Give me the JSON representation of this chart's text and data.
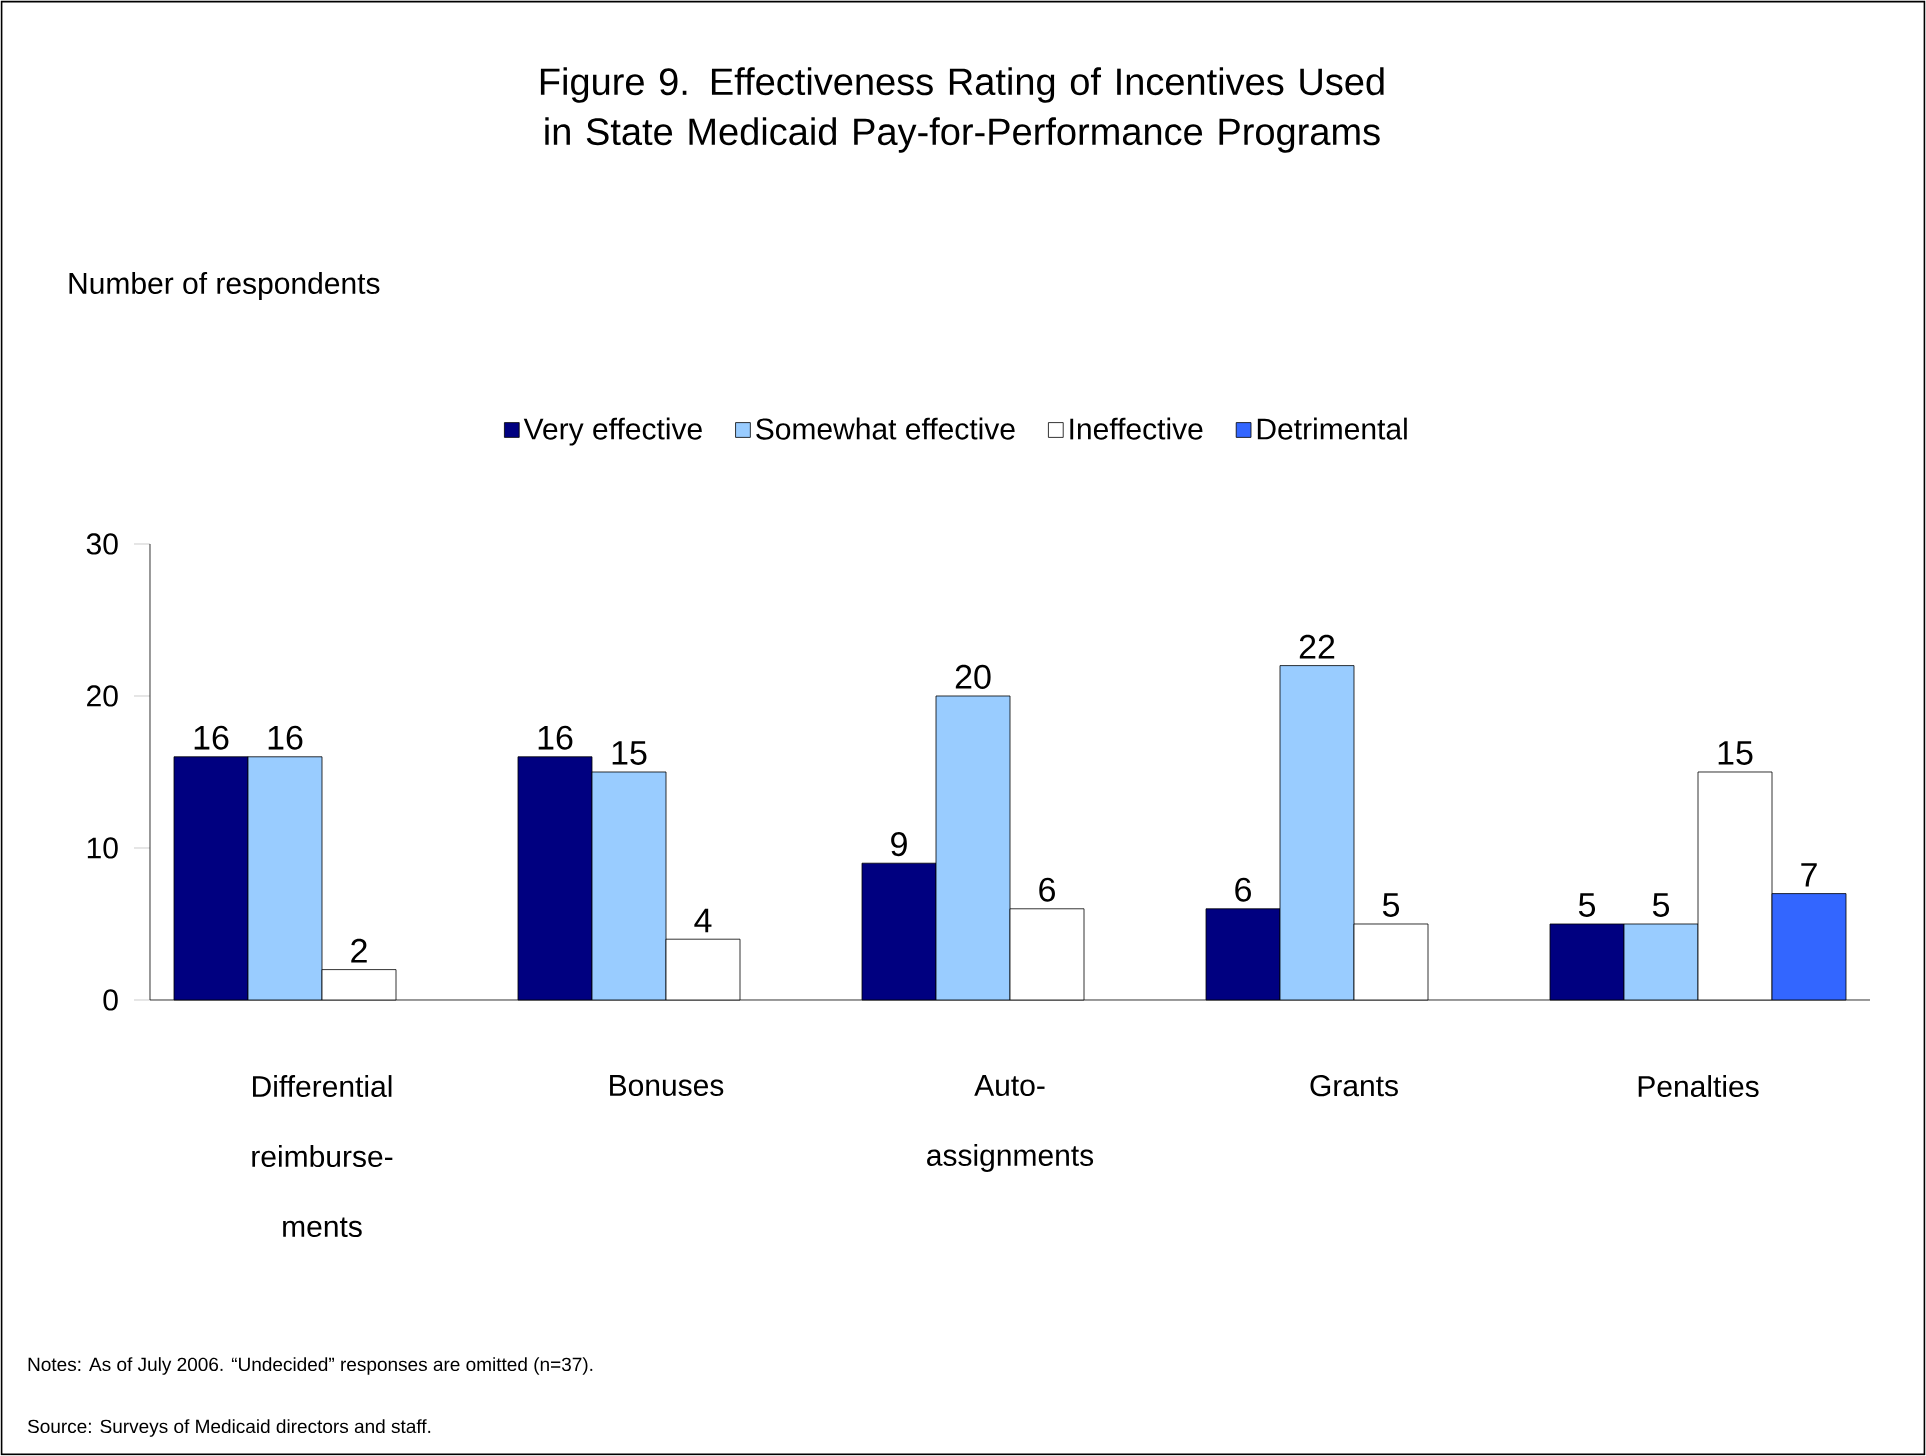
{
  "chart_data": {
    "type": "bar",
    "title": "Figure 9. Effectiveness Rating of Incentives Used in State Medicaid Pay-for-Performance Programs",
    "categories": [
      "Differential reimburse-ments",
      "Bonuses",
      "Auto-assignments",
      "Grants",
      "Penalties"
    ],
    "series": [
      {
        "name": "Very effective",
        "color": "#000080",
        "values": [
          16,
          16,
          9,
          6,
          5
        ]
      },
      {
        "name": "Somewhat effective",
        "color": "#99ccff",
        "values": [
          16,
          15,
          20,
          22,
          5
        ]
      },
      {
        "name": "Ineffective",
        "color": "#ffffff",
        "values": [
          2,
          4,
          6,
          5,
          15
        ]
      },
      {
        "name": "Detrimental",
        "color": "#3366ff",
        "values": [
          null,
          null,
          null,
          null,
          7
        ]
      }
    ],
    "ylim": [
      0,
      30
    ],
    "yticks": [
      0,
      10,
      20,
      30
    ],
    "grid": false,
    "legend": "top",
    "data_labels": true,
    "annotations": [
      "Number of respondents",
      "Notes: As of July 2006. “Undecided” responses are omitted (n=37).",
      "Source: Surveys of Medicaid directors and staff."
    ]
  }
}
